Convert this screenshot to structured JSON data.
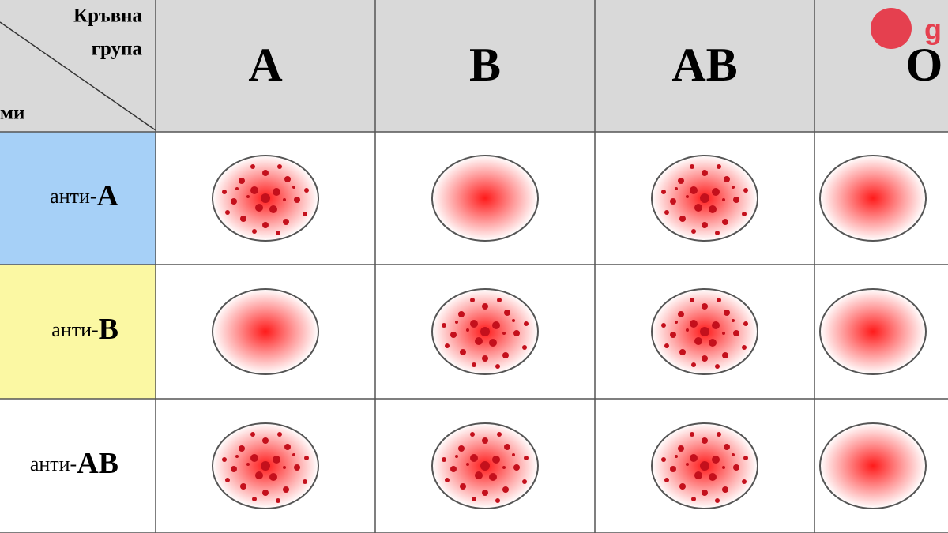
{
  "header": {
    "corner_top": [
      "Кръвна",
      "група"
    ],
    "corner_bottom": "ми",
    "columns": [
      "A",
      "B",
      "AB",
      "O"
    ]
  },
  "rows": [
    {
      "prefix": "анти-",
      "antigen": "A",
      "color": "#a6d0f7"
    },
    {
      "prefix": "анти-",
      "antigen": "B",
      "color": "#fbf8a3"
    },
    {
      "prefix": "анти-",
      "antigen": "AB",
      "color": "#ffffff"
    }
  ],
  "agglutination": [
    [
      true,
      false,
      true,
      false
    ],
    [
      false,
      true,
      true,
      false
    ],
    [
      true,
      true,
      true,
      false
    ]
  ],
  "logo": "g"
}
